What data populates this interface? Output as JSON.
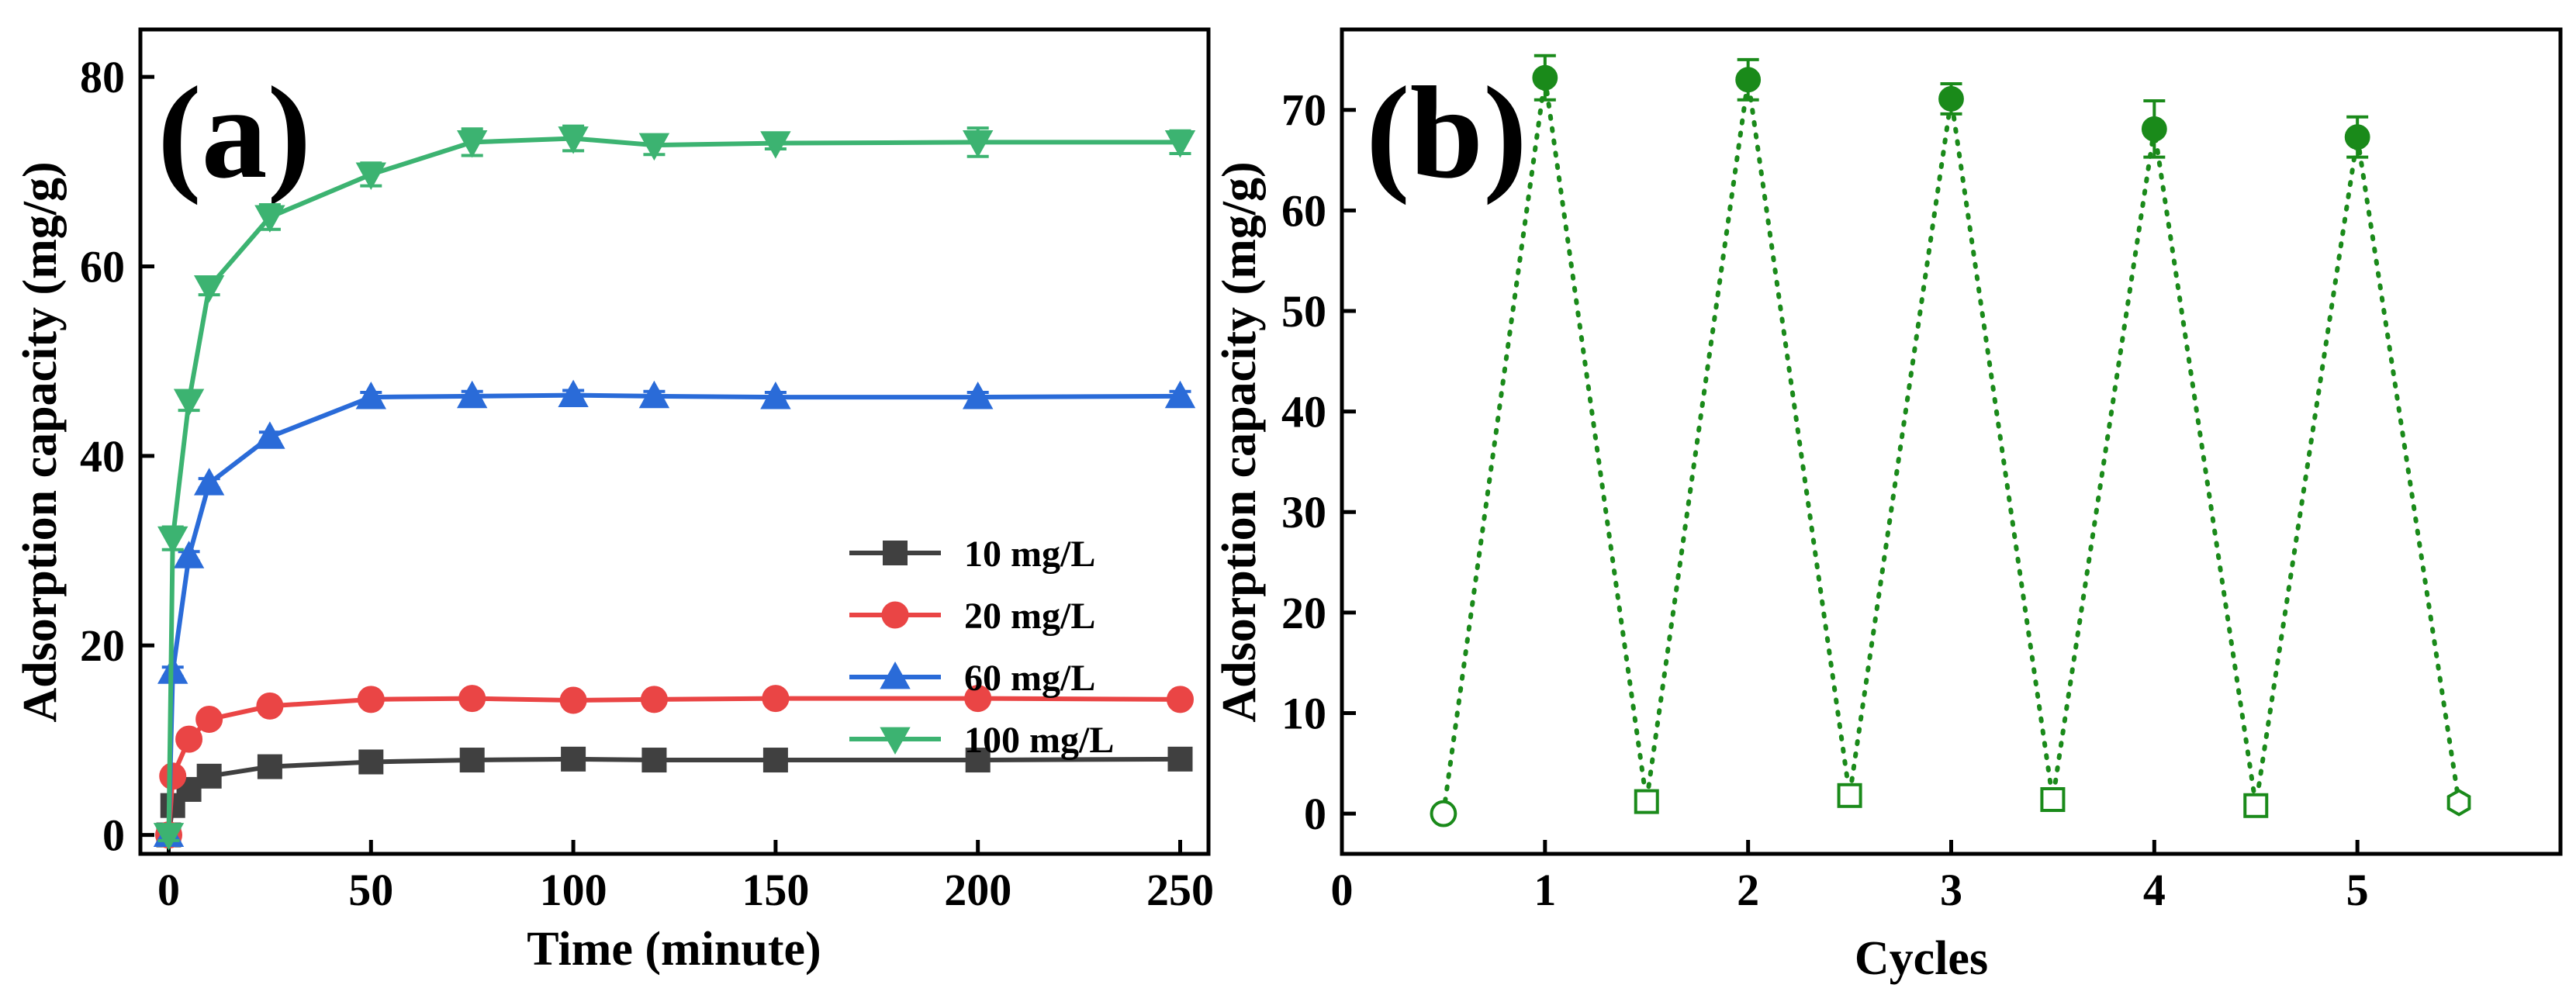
{
  "chart_data": [
    {
      "type": "line",
      "panel_label": "(a)",
      "xlabel": "Time (minute)",
      "ylabel": "Adsorption capacity (mg/g)",
      "xlim": [
        -7,
        257
      ],
      "ylim": [
        -2,
        85
      ],
      "xticks": [
        0,
        50,
        100,
        150,
        200,
        250
      ],
      "yticks": [
        0,
        20,
        40,
        60,
        80
      ],
      "grid": false,
      "legend_position": "center-right",
      "x": [
        0,
        1,
        5,
        10,
        25,
        50,
        75,
        100,
        120,
        150,
        200,
        250
      ],
      "series": [
        {
          "name": "10 mg/L",
          "color": "#404040",
          "marker": "square",
          "values": [
            0,
            3.1,
            4.8,
            6.2,
            7.2,
            7.7,
            7.9,
            8.0,
            7.9,
            7.9,
            7.9,
            8.0
          ],
          "errors": [
            0.3,
            0.3,
            0.3,
            0.3,
            0.3,
            0.3,
            0.3,
            0.3,
            0.3,
            0.3,
            0.3,
            0.3
          ]
        },
        {
          "name": "20 mg/L",
          "color": "#ea4545",
          "marker": "circle",
          "values": [
            0,
            6.2,
            10.1,
            12.2,
            13.6,
            14.3,
            14.4,
            14.2,
            14.3,
            14.4,
            14.4,
            14.3
          ],
          "errors": [
            0.4,
            0.4,
            0.4,
            0.4,
            0.4,
            0.4,
            0.4,
            0.4,
            0.4,
            0.4,
            0.4,
            0.4
          ]
        },
        {
          "name": "60 mg/L",
          "color": "#2a6bd8",
          "marker": "triangle-up",
          "values": [
            0,
            17.2,
            29.4,
            37.1,
            42.0,
            46.2,
            46.3,
            46.4,
            46.3,
            46.2,
            46.2,
            46.3
          ],
          "errors": [
            0.5,
            0.5,
            0.5,
            0.5,
            0.5,
            0.5,
            0.5,
            0.5,
            0.5,
            0.5,
            0.5,
            0.5
          ]
        },
        {
          "name": "100 mg/L",
          "color": "#3cb371",
          "marker": "triangle-down",
          "values": [
            0,
            31.3,
            45.8,
            57.8,
            65.2,
            69.7,
            73.1,
            73.5,
            72.8,
            73.0,
            73.1,
            73.1
          ],
          "errors": [
            0.6,
            1.2,
            1.0,
            0.8,
            1.3,
            1.2,
            1.4,
            1.3,
            1.0,
            0.6,
            1.5,
            1.2
          ]
        }
      ]
    },
    {
      "type": "scatter",
      "panel_label": "(b)",
      "xlabel": "Cycles",
      "ylabel": "Adsorption capacity (mg/g)",
      "xlim": [
        0,
        6
      ],
      "ylim": [
        -4,
        78
      ],
      "xticks": [
        0,
        1,
        2,
        3,
        4,
        5
      ],
      "yticks": [
        0,
        10,
        20,
        30,
        40,
        50,
        60,
        70
      ],
      "grid": false,
      "color": "#1a8a1a",
      "line_style": "dotted",
      "points": [
        {
          "x": 0.5,
          "y": 0.0,
          "error": 0.5,
          "filled": false,
          "marker": "circle"
        },
        {
          "x": 1.0,
          "y": 73.2,
          "error": 2.2,
          "filled": true,
          "marker": "circle"
        },
        {
          "x": 1.5,
          "y": 1.2,
          "error": 0.8,
          "filled": false,
          "marker": "square"
        },
        {
          "x": 2.0,
          "y": 73.0,
          "error": 2.0,
          "filled": true,
          "marker": "circle"
        },
        {
          "x": 2.5,
          "y": 1.8,
          "error": 0.8,
          "filled": false,
          "marker": "square"
        },
        {
          "x": 3.0,
          "y": 71.1,
          "error": 1.5,
          "filled": true,
          "marker": "circle"
        },
        {
          "x": 3.5,
          "y": 1.4,
          "error": 0.8,
          "filled": false,
          "marker": "square"
        },
        {
          "x": 4.0,
          "y": 68.1,
          "error": 2.8,
          "filled": true,
          "marker": "circle"
        },
        {
          "x": 4.5,
          "y": 0.8,
          "error": 0.5,
          "filled": false,
          "marker": "square"
        },
        {
          "x": 5.0,
          "y": 67.3,
          "error": 2.0,
          "filled": true,
          "marker": "circle"
        },
        {
          "x": 5.5,
          "y": 1.1,
          "error": 0.6,
          "filled": false,
          "marker": "hexagon"
        }
      ]
    }
  ]
}
